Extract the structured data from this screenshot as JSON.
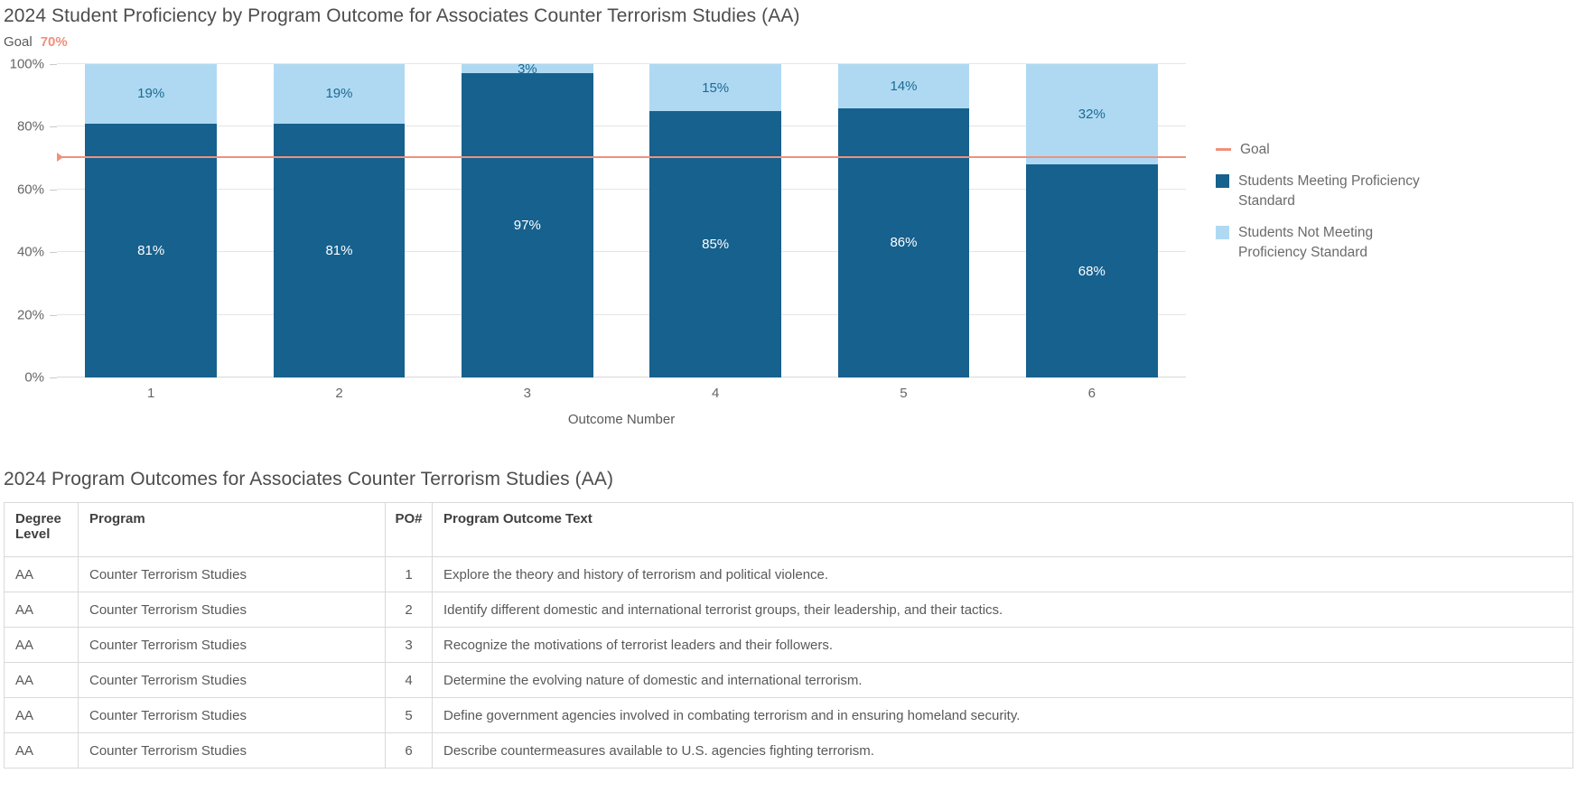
{
  "chart": {
    "title": "2024 Student Proficiency by Program Outcome for Associates Counter Terrorism Studies (AA)",
    "goal_label": "Goal",
    "goal_value": "70%",
    "xlabel": "Outcome Number",
    "y_ticks": [
      "100%",
      "80%",
      "60%",
      "40%",
      "20%",
      "0%"
    ],
    "colors": {
      "meeting": "#16618E",
      "not_meeting": "#AFD9F2",
      "goal": "#F0907B",
      "label_on_dark": "#FFFFFF",
      "label_on_light": "#1C6A93"
    },
    "legend": {
      "items": [
        {
          "label": "Goal",
          "swatch": "line",
          "color": "#F0907B"
        },
        {
          "label": "Students Meeting Proficiency Standard",
          "swatch": "square",
          "color": "#16618E"
        },
        {
          "label": "Students Not Meeting Proficiency Standard",
          "swatch": "square",
          "color": "#AFD9F2"
        }
      ]
    }
  },
  "chart_data": {
    "type": "bar",
    "stacked": true,
    "title": "2024 Student Proficiency by Program Outcome for Associates Counter Terrorism Studies (AA)",
    "xlabel": "Outcome Number",
    "ylabel": "",
    "categories": [
      "1",
      "2",
      "3",
      "4",
      "5",
      "6"
    ],
    "series": [
      {
        "name": "Students Meeting Proficiency Standard",
        "color": "#16618E",
        "values": [
          81,
          81,
          97,
          85,
          86,
          68
        ]
      },
      {
        "name": "Students Not Meeting Proficiency Standard",
        "color": "#AFD9F2",
        "values": [
          19,
          19,
          3,
          15,
          14,
          32
        ]
      }
    ],
    "data_labels": [
      [
        "81%",
        "81%",
        "97%",
        "85%",
        "86%",
        "68%"
      ],
      [
        "19%",
        "19%",
        "3%",
        "15%",
        "14%",
        "32%"
      ]
    ],
    "goal": {
      "label": "Goal",
      "value": 70,
      "display": "70%",
      "color": "#F0907B"
    },
    "ylim": [
      0,
      100
    ],
    "ytick_step": 20,
    "grid": true,
    "legend_position": "right"
  },
  "table_section": {
    "title": "2024 Program Outcomes for Associates Counter Terrorism Studies (AA)",
    "columns": [
      "Degree Level",
      "Program",
      "PO#",
      "Program Outcome Text"
    ],
    "rows": [
      [
        "AA",
        "Counter Terrorism Studies",
        "1",
        "Explore the theory and history of terrorism and political violence."
      ],
      [
        "AA",
        "Counter Terrorism Studies",
        "2",
        "Identify different domestic and international terrorist groups, their leadership, and their tactics."
      ],
      [
        "AA",
        "Counter Terrorism Studies",
        "3",
        "Recognize the motivations of terrorist leaders and their followers."
      ],
      [
        "AA",
        "Counter Terrorism Studies",
        "4",
        "Determine the evolving nature of domestic and international terrorism."
      ],
      [
        "AA",
        "Counter Terrorism Studies",
        "5",
        "Define government agencies involved in combating terrorism and in ensuring homeland security."
      ],
      [
        "AA",
        "Counter Terrorism Studies",
        "6",
        "Describe countermeasures available to U.S. agencies fighting terrorism."
      ]
    ]
  }
}
